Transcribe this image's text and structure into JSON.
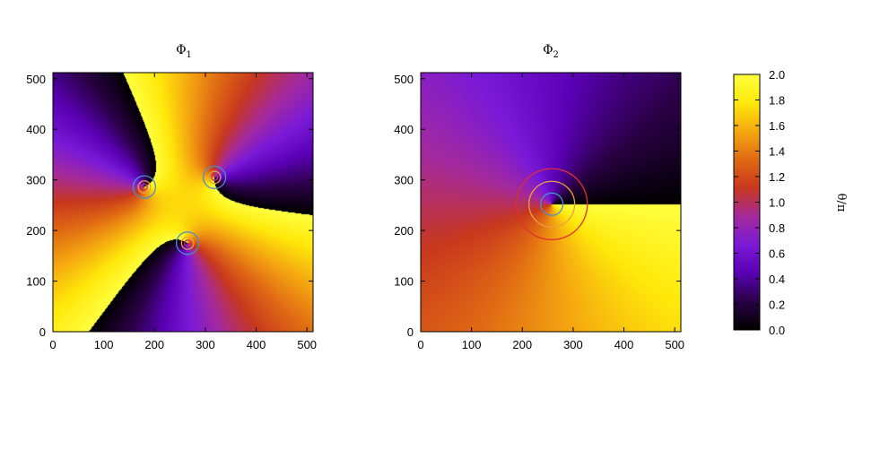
{
  "chart_data": [
    {
      "type": "heatmap",
      "title": "Φ1",
      "title_main": "Φ",
      "title_sub": "1",
      "xlabel": "",
      "ylabel": "",
      "xlim": [
        0,
        512
      ],
      "ylim": [
        0,
        512
      ],
      "xticks": [
        0,
        100,
        200,
        300,
        400,
        500
      ],
      "yticks": [
        0,
        100,
        200,
        300,
        400,
        500
      ],
      "xtick_labels": [
        "0",
        "100",
        "200",
        "300",
        "400",
        "500"
      ],
      "ytick_labels": [
        "0",
        "100",
        "200",
        "300",
        "400",
        "500"
      ],
      "vortex_centers": [
        [
          180,
          286
        ],
        [
          318,
          305
        ],
        [
          265,
          175
        ]
      ],
      "winding": 1,
      "phase_offset": 0.05,
      "contour_colors": [
        "#4a90c8",
        "#e8a040",
        "#c03060"
      ]
    },
    {
      "type": "heatmap",
      "title": "Φ2",
      "title_main": "Φ",
      "title_sub": "2",
      "xlabel": "",
      "ylabel": "",
      "xlim": [
        0,
        512
      ],
      "ylim": [
        0,
        512
      ],
      "xticks": [
        0,
        100,
        200,
        300,
        400,
        500
      ],
      "yticks": [
        0,
        100,
        200,
        300,
        400,
        500
      ],
      "xtick_labels": [
        "0",
        "100",
        "200",
        "300",
        "400",
        "500"
      ],
      "ytick_labels": [
        "0",
        "100",
        "200",
        "300",
        "400",
        "500"
      ],
      "vortex_centers": [
        [
          258,
          252
        ]
      ],
      "winding": 1,
      "phase_offset": 0.0,
      "contour_colors": [
        "#e03030",
        "#e8a040",
        "#4a90c8"
      ]
    }
  ],
  "colorbar": {
    "label": "θ/π",
    "range": [
      0.0,
      2.0
    ],
    "ticks": [
      "0.0",
      "0.2",
      "0.4",
      "0.6",
      "0.8",
      "1.0",
      "1.2",
      "1.4",
      "1.6",
      "1.8",
      "2.0"
    ],
    "palette": [
      "#000000",
      "#2a0045",
      "#5a00b4",
      "#7a1ad8",
      "#a52a9a",
      "#c8381e",
      "#e06a14",
      "#f5a810",
      "#ffe80a",
      "#ffff40"
    ]
  }
}
